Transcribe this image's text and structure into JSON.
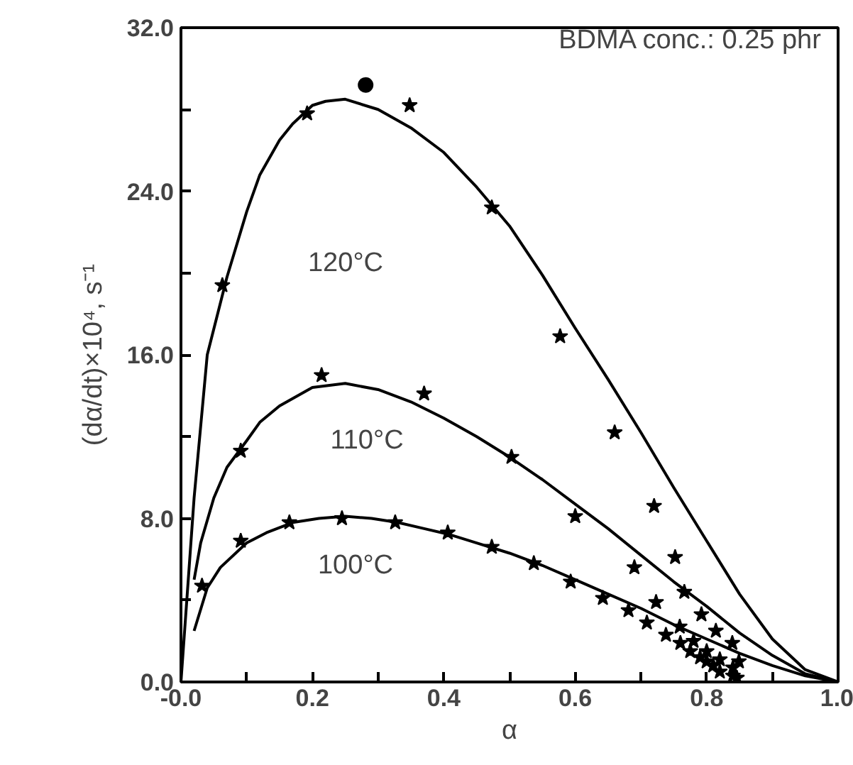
{
  "chart_data": {
    "type": "scatter",
    "xlabel": "α",
    "ylabel": "(dα/dt)×10⁴, s⁻¹",
    "xlim": [
      0,
      1
    ],
    "ylim": [
      0,
      32
    ],
    "xticks": [
      {
        "value": 0,
        "label": "-0.0"
      },
      {
        "value": 0.1,
        "label": null
      },
      {
        "value": 0.2,
        "label": "0.2"
      },
      {
        "value": 0.3,
        "label": null
      },
      {
        "value": 0.4,
        "label": "0.4"
      },
      {
        "value": 0.5,
        "label": null
      },
      {
        "value": 0.6,
        "label": "0.6"
      },
      {
        "value": 0.7,
        "label": null
      },
      {
        "value": 0.8,
        "label": "0.8"
      },
      {
        "value": 0.9,
        "label": null
      },
      {
        "value": 1,
        "label": "1.0"
      }
    ],
    "yticks": [
      {
        "value": 0,
        "label": "0.0"
      },
      {
        "value": 4,
        "label": null
      },
      {
        "value": 8,
        "label": "8.0"
      },
      {
        "value": 12,
        "label": null
      },
      {
        "value": 16,
        "label": "16.0"
      },
      {
        "value": 20,
        "label": null
      },
      {
        "value": 24,
        "label": "24.0"
      },
      {
        "value": 28,
        "label": null
      },
      {
        "value": 32,
        "label": "32.0"
      }
    ],
    "series": [
      {
        "type": "line",
        "color": "#000000",
        "marker": "none",
        "x": [
          0,
          0.02,
          0.04,
          0.07,
          0.1,
          0.12,
          0.15,
          0.17,
          0.2,
          0.22,
          0.25,
          0.3,
          0.35,
          0.4,
          0.45,
          0.5,
          0.55,
          0.6,
          0.65,
          0.7,
          0.75,
          0.8,
          0.85,
          0.9,
          0.95,
          1.0
        ],
        "values": [
          0,
          9,
          16,
          19.8,
          23,
          24.8,
          26.5,
          27.3,
          28.2,
          28.4,
          28.5,
          28,
          27.1,
          25.9,
          24.2,
          22.3,
          19.9,
          17.3,
          14.8,
          12.2,
          9.5,
          6.9,
          4.3,
          2.1,
          0.6,
          0
        ]
      },
      {
        "type": "line",
        "color": "#000000",
        "marker": "none",
        "x": [
          0.02,
          0.03,
          0.05,
          0.07,
          0.1,
          0.12,
          0.15,
          0.2,
          0.25,
          0.3,
          0.35,
          0.4,
          0.45,
          0.5,
          0.55,
          0.6,
          0.65,
          0.7,
          0.75,
          0.8,
          0.85,
          0.9,
          0.95,
          1.0
        ],
        "values": [
          5,
          6.8,
          9,
          10.5,
          11.8,
          12.7,
          13.5,
          14.4,
          14.6,
          14.3,
          13.7,
          12.9,
          12,
          11,
          9.9,
          8.7,
          7.5,
          6.2,
          4.9,
          3.7,
          2.4,
          1.3,
          0.4,
          0
        ]
      },
      {
        "type": "line",
        "color": "#000000",
        "marker": "none",
        "x": [
          0.02,
          0.04,
          0.06,
          0.1,
          0.13,
          0.17,
          0.21,
          0.25,
          0.29,
          0.33,
          0.37,
          0.41,
          0.45,
          0.5,
          0.55,
          0.6,
          0.65,
          0.7,
          0.75,
          0.8,
          0.85,
          0.9,
          0.95,
          1.0
        ],
        "values": [
          2.5,
          4.6,
          5.6,
          6.8,
          7.3,
          7.8,
          8,
          8.1,
          8,
          7.8,
          7.5,
          7.2,
          6.8,
          6.3,
          5.7,
          5,
          4.3,
          3.6,
          2.8,
          2.1,
          1.4,
          0.8,
          0.3,
          0
        ]
      },
      {
        "color": "#000000",
        "marker": "star",
        "x": [
          0.063,
          0.192,
          0.348,
          0.473,
          0.577,
          0.66,
          0.72,
          0.752,
          0.766,
          0.792,
          0.814,
          0.839,
          0.849
        ],
        "values": [
          19.4,
          27.8,
          28.2,
          23.2,
          16.9,
          12.2,
          8.6,
          6.1,
          4.4,
          3.3,
          2.5,
          1.9,
          1.0
        ]
      },
      {
        "color": "#000000",
        "marker": "circle",
        "x": [
          0.281
        ],
        "values": [
          29.2
        ]
      },
      {
        "color": "#000000",
        "marker": "star",
        "x": [
          0.091,
          0.214,
          0.37,
          0.503,
          0.6,
          0.69,
          0.723,
          0.759,
          0.78,
          0.8,
          0.82,
          0.84
        ],
        "values": [
          11.3,
          15,
          14.1,
          11,
          8.1,
          5.6,
          3.9,
          2.7,
          2,
          1.5,
          1.1,
          0.7
        ]
      },
      {
        "color": "#000000",
        "marker": "star",
        "x": [
          0.032,
          0.091,
          0.165,
          0.245,
          0.326,
          0.406,
          0.473,
          0.537,
          0.593,
          0.642,
          0.681,
          0.709,
          0.738,
          0.76,
          0.775,
          0.79,
          0.8,
          0.81,
          0.82,
          0.84,
          0.846
        ],
        "values": [
          4.7,
          6.9,
          7.8,
          8,
          7.8,
          7.3,
          6.6,
          5.8,
          4.9,
          4.1,
          3.5,
          2.9,
          2.3,
          1.9,
          1.5,
          1.2,
          1,
          0.8,
          0.5,
          0.3,
          0.2
        ]
      }
    ],
    "annotations": [
      "BDMA conc.: 0.25 phr",
      "120°C",
      "110°C",
      "100°C"
    ]
  }
}
